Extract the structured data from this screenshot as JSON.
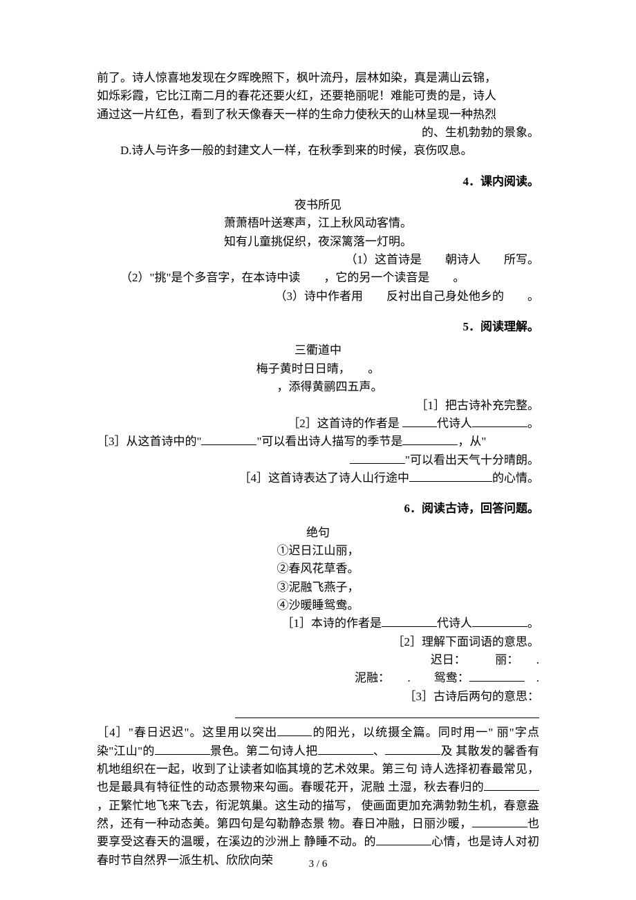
{
  "top_paragraph": {
    "line1": "前了。诗人惊喜地发现在夕晖晚照下，枫叶流丹，层林如染，真是满山云锦，",
    "line2": "如烁彩霞，它比江南二月的春花还要火红，还要艳丽呢！难能可贵的是，诗人",
    "line3": "通过这一片红色，看到了秋天像春天一样的生命力使秋天的山林呈现一种热烈",
    "line4_right": "的、生机勃勃的景象。",
    "optionD": "D.诗人与许多一般的封建文人一样，在秋季到来的时候，哀伤叹息。"
  },
  "s4": {
    "heading": "4．课内阅读。",
    "title": "夜书所见",
    "line1": "萧萧梧叶送寒声，江上秋风动客情。",
    "line2": "知有儿童挑促织，夜深篱落一灯明。",
    "q1": "（1）这首诗是　　朝诗人　　所写。",
    "q2": "（2）\"挑\"是个多音字，在本诗中读　　，它的另一个读音是　　。",
    "q3": "（3）诗中作者用　　反衬出自己身处他乡的　　。"
  },
  "s5": {
    "heading": "5．阅读理解。",
    "title": "三衢道中",
    "line1": "梅子黄时日日晴，　　。",
    "line2": "　　，添得黄鹂四五声。",
    "q1": "［1］把古诗补充完整。",
    "q2_a": "［2］这首诗的作者是 ",
    "q2_b": "代诗人",
    "q2_c": "。",
    "q3_a": "［3］从这首诗中的\"",
    "q3_b": "\"可以看出诗人描写的季节是",
    "q3_c": "，从\"",
    "q3_d": "\"可以看出天气十分晴朗。",
    "q4_a": "［4］这首诗表达了诗人山行途中",
    "q4_b": "的心情。"
  },
  "s6": {
    "heading": "6．阅读古诗，回答问题。",
    "title": "绝句",
    "l1": "①迟日江山丽，",
    "l2": "②春风花草香。",
    "l3": "③泥融飞燕子，",
    "l4": "④沙暖睡鸳鸯。",
    "q1_a": "［1］本诗的作者是",
    "q1_b": "代诗人",
    "q1_c": "。",
    "q2": "［2］理解下面词语的意思。",
    "q2_l1_a": "迟日：",
    "q2_l1_b": "丽：",
    "q2_l2_a": "泥融：",
    "q2_l2_b": "鸳鸯：",
    "q3": "［3］古诗后两句的意思：",
    "q4_a": "［4］\"春日迟迟\"。这里用以突出",
    "q4_b": "的阳光，以统摄全篇。同时用一\"",
    "q4_c": "丽\"字点染\"江山\"的",
    "q4_d": "景色。第二句诗人把",
    "q4_e": "、",
    "q4_f": "及",
    "q4_g": "其散发的馨香有机地组织在一起，收到了让读者如临其境的艺术效果。第三句",
    "q4_h": "诗人选择初春最常见，也是最具有特征性的动态景物来勾画。春暖花开，泥融",
    "q4_i": "土湿，秋去春归的",
    "q4_j": "，正繁忙地飞来飞去，衔泥筑巢。这生动的描写，",
    "q4_k": "使画面更加充满勃勃生机，春意盎然，还有一种动态美。第四句是勾勒静态景",
    "q4_l": "物。春日冲融，日丽沙暖，",
    "q4_m": "也要享受这春天的温暖，在溪边的沙洲上",
    "q4_n": "静睡不动。的",
    "q4_o": "心情，也是诗人对初春时节自然界一派生机、欣欣向荣"
  },
  "pagenum": "3 / 6"
}
